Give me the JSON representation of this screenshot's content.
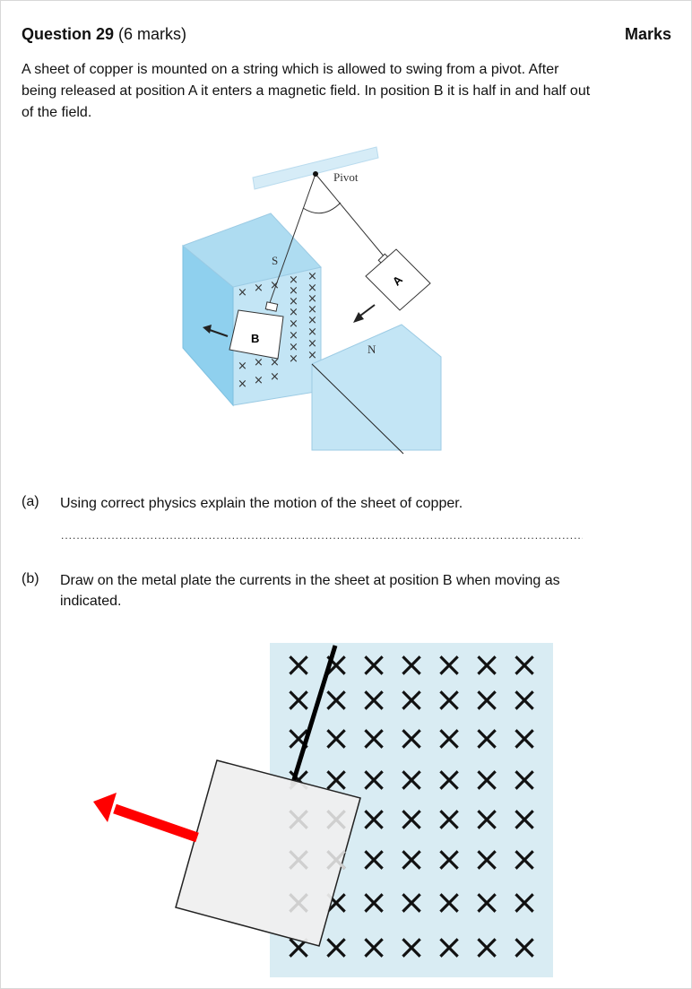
{
  "question": {
    "title_bold": "Question 29",
    "marks_info": "(6 marks)",
    "marks_header": "Marks",
    "intro": "A sheet of copper is mounted on a string which is allowed to swing from a pivot. After being released at position A it enters a magnetic field. In position B it is half in and half out of the field."
  },
  "diagram1": {
    "pivot_label": "Pivot",
    "south_label": "S",
    "north_label": "N",
    "plate_a_label": "A",
    "plate_b_label": "B",
    "field_symbol": "×",
    "colors": {
      "magnet": "#c3e5f5",
      "magnet_dark": "#8fd0ee"
    }
  },
  "part_a": {
    "label": "(a)",
    "text": "Using correct physics explain the motion of the sheet of copper.",
    "answer_line": "............................................................................................................................................................"
  },
  "part_b": {
    "label": "(b)",
    "text": "Draw on the metal plate the currents in the sheet at position B when moving as indicated."
  },
  "diagram2": {
    "field_symbol": "×",
    "colors": {
      "field": "#d9ecf3",
      "arrow": "#ff0000",
      "plate": "#efefef"
    }
  }
}
